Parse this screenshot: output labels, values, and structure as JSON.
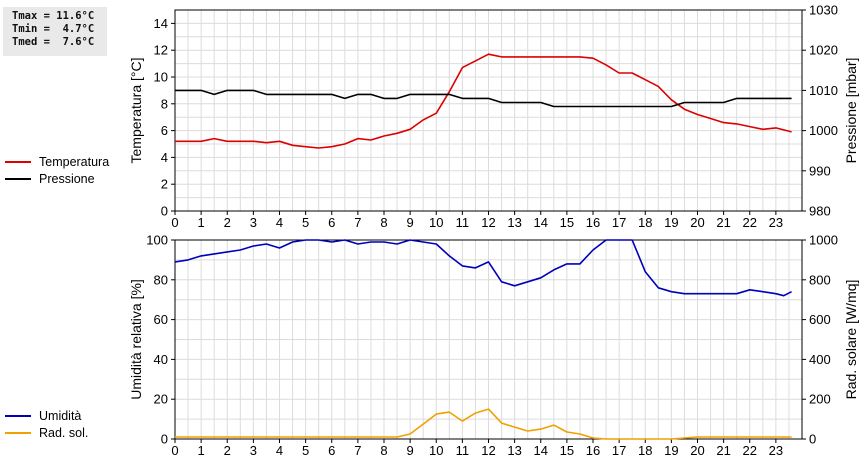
{
  "stats": {
    "tmax": "Tmax = 11.6°C",
    "tmin": "Tmin =  4.7°C",
    "tmed": "Tmed =  7.6°C"
  },
  "chart_data": [
    {
      "type": "line",
      "legend_placement": "left",
      "grid": true,
      "y_left": {
        "label": "Temperatura [°C]",
        "range": [
          0,
          15
        ],
        "ticks": [
          0,
          2,
          4,
          6,
          8,
          10,
          12,
          14
        ]
      },
      "y_right": {
        "label": "Pressione [mbar]",
        "range": [
          980,
          1030
        ],
        "ticks": [
          980,
          990,
          1000,
          1010,
          1020,
          1030
        ]
      },
      "x": {
        "range": [
          0,
          24
        ],
        "ticks": [
          0,
          1,
          2,
          3,
          4,
          5,
          6,
          7,
          8,
          9,
          10,
          11,
          12,
          13,
          14,
          15,
          16,
          17,
          18,
          19,
          20,
          21,
          22,
          23
        ]
      },
      "series": [
        {
          "name": "Temperatura",
          "color": "#dd0000",
          "axis": "left",
          "points": [
            [
              0,
              5.2
            ],
            [
              1,
              5.2
            ],
            [
              1.5,
              5.4
            ],
            [
              2,
              5.2
            ],
            [
              3,
              5.2
            ],
            [
              3.5,
              5.1
            ],
            [
              4,
              5.2
            ],
            [
              4.5,
              4.9
            ],
            [
              5,
              4.8
            ],
            [
              5.5,
              4.7
            ],
            [
              6,
              4.8
            ],
            [
              6.5,
              5.0
            ],
            [
              7,
              5.4
            ],
            [
              7.5,
              5.3
            ],
            [
              8,
              5.6
            ],
            [
              8.5,
              5.8
            ],
            [
              9,
              6.1
            ],
            [
              9.5,
              6.8
            ],
            [
              10,
              7.3
            ],
            [
              10.5,
              8.9
            ],
            [
              11,
              10.7
            ],
            [
              11.5,
              11.2
            ],
            [
              12,
              11.7
            ],
            [
              12.5,
              11.5
            ],
            [
              13,
              11.5
            ],
            [
              14,
              11.5
            ],
            [
              15,
              11.5
            ],
            [
              15.5,
              11.5
            ],
            [
              16,
              11.4
            ],
            [
              16.5,
              10.9
            ],
            [
              17,
              10.3
            ],
            [
              17.5,
              10.3
            ],
            [
              18,
              9.8
            ],
            [
              18.5,
              9.3
            ],
            [
              19,
              8.3
            ],
            [
              19.5,
              7.6
            ],
            [
              20,
              7.2
            ],
            [
              20.5,
              6.9
            ],
            [
              21,
              6.6
            ],
            [
              21.5,
              6.5
            ],
            [
              22,
              6.3
            ],
            [
              22.5,
              6.1
            ],
            [
              23,
              6.2
            ],
            [
              23.6,
              5.9
            ]
          ]
        },
        {
          "name": "Pressione",
          "color": "#000000",
          "axis": "right",
          "points": [
            [
              0,
              1010
            ],
            [
              1,
              1010
            ],
            [
              1.5,
              1009
            ],
            [
              2,
              1010
            ],
            [
              3,
              1010
            ],
            [
              3.5,
              1009
            ],
            [
              4,
              1009
            ],
            [
              5,
              1009
            ],
            [
              6,
              1009
            ],
            [
              6.5,
              1008
            ],
            [
              7,
              1009
            ],
            [
              7.5,
              1009
            ],
            [
              8,
              1008
            ],
            [
              8.5,
              1008
            ],
            [
              9,
              1009
            ],
            [
              9.5,
              1009
            ],
            [
              10,
              1009
            ],
            [
              10.5,
              1009
            ],
            [
              11,
              1008
            ],
            [
              12,
              1008
            ],
            [
              12.5,
              1007
            ],
            [
              13,
              1007
            ],
            [
              14,
              1007
            ],
            [
              14.5,
              1006
            ],
            [
              15,
              1006
            ],
            [
              16,
              1006
            ],
            [
              17,
              1006
            ],
            [
              18,
              1006
            ],
            [
              19,
              1006
            ],
            [
              19.5,
              1007
            ],
            [
              20,
              1007
            ],
            [
              21,
              1007
            ],
            [
              21.5,
              1008
            ],
            [
              22,
              1008
            ],
            [
              23,
              1008
            ],
            [
              23.6,
              1008
            ]
          ]
        }
      ]
    },
    {
      "type": "line",
      "legend_placement": "left",
      "grid": true,
      "y_left": {
        "label": "Umidità relativa [%]",
        "range": [
          0,
          100
        ],
        "ticks": [
          0,
          20,
          40,
          60,
          80,
          100
        ]
      },
      "y_right": {
        "label": "Rad. solare [W/mq]",
        "range": [
          0,
          1000
        ],
        "ticks": [
          0,
          200,
          400,
          600,
          800,
          1000
        ]
      },
      "x": {
        "range": [
          0,
          24
        ],
        "ticks": [
          0,
          1,
          2,
          3,
          4,
          5,
          6,
          7,
          8,
          9,
          10,
          11,
          12,
          13,
          14,
          15,
          16,
          17,
          18,
          19,
          20,
          21,
          22,
          23
        ]
      },
      "series": [
        {
          "name": "Umidità",
          "color": "#0000bb",
          "axis": "left",
          "points": [
            [
              0,
              89
            ],
            [
              0.5,
              90
            ],
            [
              1,
              92
            ],
            [
              1.5,
              93
            ],
            [
              2,
              94
            ],
            [
              2.5,
              95
            ],
            [
              3,
              97
            ],
            [
              3.5,
              98
            ],
            [
              4,
              96
            ],
            [
              4.5,
              99
            ],
            [
              5,
              100
            ],
            [
              5.5,
              100
            ],
            [
              6,
              99
            ],
            [
              6.5,
              100
            ],
            [
              7,
              98
            ],
            [
              7.5,
              99
            ],
            [
              8,
              99
            ],
            [
              8.5,
              98
            ],
            [
              9,
              100
            ],
            [
              9.5,
              99
            ],
            [
              10,
              98
            ],
            [
              10.5,
              92
            ],
            [
              11,
              87
            ],
            [
              11.5,
              86
            ],
            [
              12,
              89
            ],
            [
              12.5,
              79
            ],
            [
              13,
              77
            ],
            [
              13.5,
              79
            ],
            [
              14,
              81
            ],
            [
              14.5,
              85
            ],
            [
              15,
              88
            ],
            [
              15.5,
              88
            ],
            [
              16,
              95
            ],
            [
              16.5,
              100
            ],
            [
              17,
              100
            ],
            [
              17.5,
              100
            ],
            [
              18,
              84
            ],
            [
              18.5,
              76
            ],
            [
              19,
              74
            ],
            [
              19.5,
              73
            ],
            [
              20,
              73
            ],
            [
              20.5,
              73
            ],
            [
              21,
              73
            ],
            [
              21.5,
              73
            ],
            [
              22,
              75
            ],
            [
              22.5,
              74
            ],
            [
              23,
              73
            ],
            [
              23.3,
              72
            ],
            [
              23.6,
              74
            ]
          ]
        },
        {
          "name": "Rad. sol.",
          "color": "#f0a000",
          "axis": "right",
          "points": [
            [
              0,
              10
            ],
            [
              8.5,
              10
            ],
            [
              9,
              25
            ],
            [
              9.5,
              75
            ],
            [
              10,
              125
            ],
            [
              10.5,
              135
            ],
            [
              11,
              90
            ],
            [
              11.5,
              130
            ],
            [
              12,
              150
            ],
            [
              12.5,
              80
            ],
            [
              13,
              60
            ],
            [
              13.5,
              40
            ],
            [
              14,
              50
            ],
            [
              14.5,
              70
            ],
            [
              15,
              35
            ],
            [
              15.5,
              25
            ],
            [
              16,
              5
            ],
            [
              16.5,
              0
            ],
            [
              17,
              0
            ],
            [
              18,
              0
            ],
            [
              19,
              0
            ],
            [
              20,
              10
            ],
            [
              23.6,
              10
            ]
          ]
        }
      ]
    }
  ]
}
